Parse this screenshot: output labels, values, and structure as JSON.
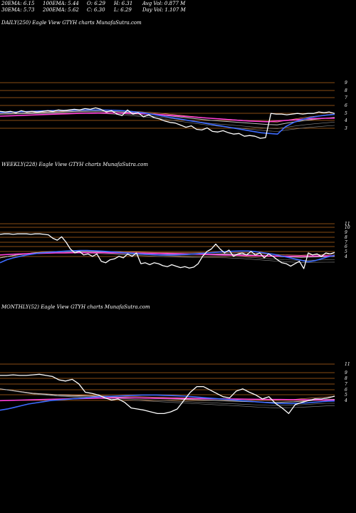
{
  "header": {
    "ema20": "20EMA: 6.15",
    "ema100": "100EMA: 5.44",
    "open": "O: 6.29",
    "high": "H: 6.31",
    "avg_vol": "Avg Vol: 0.877 M",
    "ema30": "30EMA: 5.73",
    "ema200": "200EMA: 5.62",
    "close": "C: 6.30",
    "low": "L: 6.29",
    "day_vol": "Day Vol: 1.107 M"
  },
  "colors": {
    "background": "#000000",
    "price": "#ffffff",
    "ema_fast": "#3d6bff",
    "ema_mid": "#ff3fd8",
    "ema_slow": "#c0c0c0",
    "level_lines": "#b5651d"
  },
  "chart_data": [
    {
      "type": "line",
      "title": "DAILY(250) Eagle   View  GTYH charts MunafaSutra.com",
      "ylabels": [
        "9",
        "8",
        "7",
        "6",
        "5",
        "4",
        "3"
      ],
      "grid": true,
      "series": [
        {
          "values": [
            6.6,
            6.5,
            6.6,
            6.4,
            6.7,
            6.5,
            6.6,
            6.5,
            6.6,
            6.7,
            6.6,
            6.8,
            6.7,
            6.8,
            6.9,
            6.8,
            7.0,
            6.9,
            7.1,
            6.9,
            6.5,
            6.7,
            6.2,
            6.0,
            6.8,
            6.2,
            6.4,
            5.8,
            6.1,
            5.7,
            5.5,
            5.2,
            5.0,
            4.9,
            4.6,
            4.3,
            4.5,
            4.0,
            3.9,
            4.2,
            3.7,
            3.6,
            3.8,
            3.5,
            3.3,
            3.4,
            3.0,
            3.1,
            3.0,
            2.7,
            2.8,
            6.3,
            6.2,
            6.2,
            6.1,
            6.2,
            6.3,
            6.2,
            6.3,
            6.3,
            6.5,
            6.4,
            6.5,
            6.3
          ]
        },
        {
          "values": [
            6.4,
            6.45,
            6.5,
            6.55,
            6.6,
            6.65,
            6.7,
            6.72,
            6.74,
            6.76,
            6.78,
            6.8,
            6.8,
            6.78,
            6.75,
            6.7,
            6.6,
            6.45,
            6.3,
            6.1,
            5.9,
            5.7,
            5.5,
            5.3,
            5.1,
            4.9,
            4.7,
            4.5,
            4.3,
            4.1,
            3.9,
            3.7,
            3.5,
            3.4,
            3.3,
            4.4,
            5.0,
            5.4,
            5.7,
            5.9,
            6.05,
            6.15
          ]
        },
        {
          "values": [
            5.9,
            5.95,
            6.0,
            6.05,
            6.1,
            6.15,
            6.2,
            6.25,
            6.3,
            6.32,
            6.34,
            6.36,
            6.36,
            6.34,
            6.3,
            6.25,
            6.18,
            6.1,
            6.0,
            5.9,
            5.8,
            5.7,
            5.6,
            5.5,
            5.4,
            5.3,
            5.2,
            5.15,
            5.1,
            5.2,
            5.3,
            5.4,
            5.5,
            5.55,
            5.6,
            5.62
          ]
        },
        {
          "values": [
            6.2,
            6.25,
            6.3,
            6.35,
            6.4,
            6.45,
            6.5,
            6.55,
            6.6,
            6.62,
            6.64,
            6.62,
            6.58,
            6.5,
            6.4,
            6.3,
            6.2,
            6.05,
            5.9,
            5.75,
            5.6,
            5.45,
            5.3,
            5.2,
            5.1,
            5.0,
            4.9,
            4.8,
            4.7,
            4.65,
            4.9,
            5.1,
            5.3,
            5.45,
            5.6,
            5.73
          ]
        }
      ]
    },
    {
      "type": "line",
      "title": "WEEKLY(228) Eagle   View  GTYH charts MunafaSutra.com",
      "ylabels": [
        "11",
        "10",
        "9",
        "8",
        "7",
        "6",
        "5",
        "4"
      ],
      "grid": true,
      "series": [
        {
          "values": [
            10.0,
            10.1,
            10.1,
            10.0,
            10.1,
            10.1,
            10.1,
            10.0,
            10.1,
            10.1,
            10.0,
            9.9,
            9.2,
            8.8,
            9.5,
            8.4,
            7.0,
            6.2,
            6.5,
            5.8,
            6.0,
            5.5,
            6.0,
            4.5,
            4.2,
            4.8,
            5.0,
            5.5,
            5.2,
            6.0,
            5.5,
            6.2,
            4.0,
            4.2,
            3.8,
            4.2,
            4.0,
            3.6,
            3.4,
            3.8,
            3.5,
            3.2,
            3.4,
            3.1,
            3.3,
            4.0,
            5.5,
            6.5,
            7.0,
            8.0,
            7.0,
            6.2,
            6.8,
            5.5,
            6.0,
            6.2,
            5.8,
            6.5,
            5.8,
            6.2,
            5.2,
            6.0,
            5.5,
            4.8,
            4.2,
            4.0,
            3.5,
            4.0,
            4.5,
            3.0,
            6.2,
            5.8,
            6.0,
            5.5,
            6.2,
            6.0,
            6.3
          ]
        },
        {
          "values": [
            4.2,
            4.8,
            5.2,
            5.5,
            5.8,
            6.0,
            6.2,
            6.3,
            6.4,
            6.5,
            6.6,
            6.65,
            6.7,
            6.7,
            6.65,
            6.6,
            6.5,
            6.4,
            6.3,
            6.2,
            6.1,
            6.0,
            5.9,
            5.85,
            5.8,
            5.8,
            5.8,
            5.85,
            5.9,
            6.0,
            6.1,
            6.2,
            6.3,
            6.4,
            6.5,
            6.55,
            6.6,
            6.6,
            6.5,
            6.3,
            6.1,
            5.9,
            5.6,
            5.3,
            5.0,
            4.7,
            4.4,
            4.6,
            5.0,
            5.4,
            5.7
          ]
        },
        {
          "values": [
            5.8,
            5.9,
            6.0,
            6.05,
            6.1,
            6.15,
            6.2,
            6.22,
            6.24,
            6.25,
            6.25,
            6.24,
            6.22,
            6.2,
            6.18,
            6.15,
            6.12,
            6.1,
            6.08,
            6.05,
            6.0,
            5.95,
            5.9,
            5.85,
            5.8,
            5.75,
            5.7,
            5.65,
            5.6,
            5.58,
            5.56,
            5.55,
            5.55,
            5.56,
            5.58,
            5.6,
            5.62
          ]
        },
        {
          "values": [
            5.2,
            5.5,
            5.8,
            6.0,
            6.2,
            6.3,
            6.4,
            6.45,
            6.5,
            6.5,
            6.48,
            6.45,
            6.4,
            6.35,
            6.3,
            6.25,
            6.2,
            6.15,
            6.1,
            6.05,
            6.0,
            5.98,
            5.96,
            5.95,
            5.95,
            5.96,
            5.98,
            6.0,
            5.95,
            5.9,
            5.8,
            5.7,
            5.6,
            5.5,
            5.4,
            5.35,
            5.3,
            5.35,
            5.4,
            5.45,
            5.5
          ]
        }
      ]
    },
    {
      "type": "line",
      "title": "MONTHLY(52) Eagle   View  GTYH charts MunafaSutra.com",
      "ylabels": [
        "11",
        "9",
        "8",
        "7",
        "6",
        "5",
        "4"
      ],
      "grid": true,
      "series": [
        {
          "values": [
            10.0,
            10.0,
            10.1,
            10.0,
            10.0,
            10.1,
            10.2,
            10.0,
            9.8,
            9.2,
            9.0,
            9.3,
            8.5,
            7.0,
            6.8,
            6.5,
            6.0,
            5.6,
            5.8,
            5.2,
            4.2,
            4.0,
            3.8,
            3.5,
            3.2,
            3.2,
            3.5,
            4.0,
            5.5,
            7.0,
            8.0,
            8.0,
            7.4,
            6.8,
            6.2,
            6.0,
            7.2,
            7.6,
            7.0,
            6.5,
            5.8,
            6.2,
            5.0,
            4.2,
            3.2,
            4.8,
            5.2,
            5.5,
            5.8,
            5.8,
            6.0,
            6.3
          ]
        },
        {
          "values": [
            3.8,
            4.0,
            4.3,
            4.6,
            4.9,
            5.1,
            5.3,
            5.5,
            5.6,
            5.7,
            5.8,
            5.9,
            6.0,
            6.1,
            6.2,
            6.25,
            6.3,
            6.35,
            6.4,
            6.45,
            6.5,
            6.5,
            6.5,
            6.45,
            6.4,
            6.35,
            6.3,
            6.2,
            6.1,
            6.0,
            5.9,
            5.8,
            5.7,
            5.6,
            5.5,
            5.4,
            5.3,
            5.2,
            5.1,
            5.0,
            5.0,
            5.0,
            5.05,
            5.1,
            5.2,
            5.3,
            5.4,
            5.44
          ]
        },
        {
          "values": [
            5.5,
            5.55,
            5.6,
            5.65,
            5.7,
            5.75,
            5.8,
            5.85,
            5.9,
            5.95,
            6.0,
            6.0,
            6.0,
            5.98,
            5.95,
            5.92,
            5.9,
            5.88,
            5.86,
            5.84,
            5.82,
            5.8,
            5.78,
            5.76,
            5.74,
            5.72,
            5.7,
            5.68,
            5.66,
            5.64,
            5.62,
            5.62
          ]
        },
        {
          "values": [
            7.6,
            7.4,
            7.2,
            7.0,
            6.8,
            6.7,
            6.6,
            6.5,
            6.45,
            6.4,
            6.35,
            6.3,
            6.25,
            6.2,
            6.15,
            6.1,
            6.05,
            6.0,
            5.95,
            5.9,
            5.85,
            5.8,
            5.75,
            5.7,
            5.65,
            5.6,
            5.55,
            5.5,
            5.45,
            5.4,
            5.35,
            5.3,
            5.25,
            5.2,
            5.2,
            5.25,
            5.3,
            5.4,
            5.5,
            5.6,
            5.7,
            5.73
          ]
        }
      ]
    }
  ]
}
